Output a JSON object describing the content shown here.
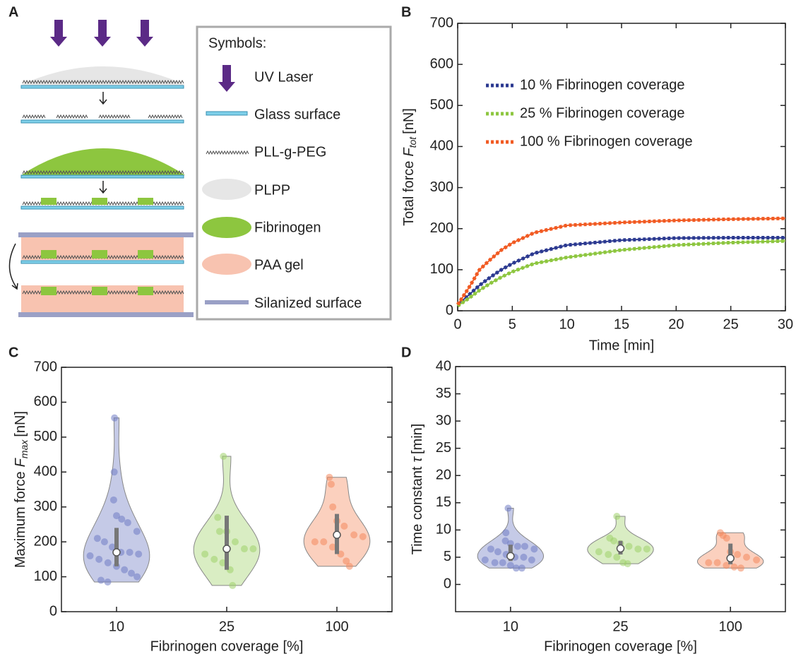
{
  "panel_labels": [
    "A",
    "B",
    "C",
    "D"
  ],
  "schematic": {
    "legend_title": "Symbols:",
    "symbols": [
      "UV Laser",
      "Glass surface",
      "PLL-g-PEG",
      "PLPP",
      "Fibrinogen",
      "PAA gel",
      "Silanized surface"
    ]
  },
  "chart_data": [
    {
      "type": "line",
      "line_style": "dotted",
      "legend": "upper left",
      "x_label": "Time [min]",
      "y_label": {
        "text": "Total force",
        "symbol": "F",
        "subscript": "tot",
        "unit": "[nN]"
      },
      "x": [
        0,
        1,
        2,
        3,
        4,
        5,
        7,
        10,
        15,
        20,
        25,
        30
      ],
      "series": [
        {
          "name": "10 % Fibrinogen coverage",
          "color": "#2b3990",
          "values": [
            15,
            38,
            62,
            82,
            100,
            115,
            140,
            160,
            172,
            177,
            178,
            178
          ]
        },
        {
          "name": "25 % Fibrinogen coverage",
          "color": "#8dc63f",
          "values": [
            12,
            30,
            50,
            67,
            82,
            95,
            115,
            130,
            148,
            160,
            166,
            170
          ]
        },
        {
          "name": "100 % Fibrinogen coverage",
          "color": "#f15a22",
          "values": [
            15,
            55,
            100,
            125,
            148,
            165,
            190,
            208,
            215,
            220,
            223,
            225
          ]
        }
      ],
      "xlim": [
        0,
        30
      ],
      "xticks": [
        0,
        5,
        10,
        15,
        20,
        25,
        30
      ],
      "ylim": [
        0,
        700
      ],
      "yticks": [
        0,
        100,
        200,
        300,
        400,
        500,
        600,
        700
      ]
    },
    {
      "type": "violin",
      "x_label": "Fibrinogen coverage [%]",
      "y_label": {
        "text": "Maximum force",
        "symbol": "F",
        "subscript": "max",
        "unit": "[nN]"
      },
      "categories": [
        "10",
        "25",
        "100"
      ],
      "colors": [
        "#6f7bc4",
        "#9fd26a",
        "#f4895c"
      ],
      "points": [
        [
          555,
          400,
          320,
          275,
          265,
          255,
          230,
          210,
          200,
          185,
          170,
          170,
          165,
          160,
          150,
          140,
          130,
          120,
          110,
          100,
          90,
          85
        ],
        [
          445,
          270,
          230,
          230,
          200,
          180,
          180,
          165,
          150,
          140,
          120,
          75
        ],
        [
          385,
          365,
          300,
          260,
          245,
          220,
          215,
          200,
          200,
          185,
          165,
          145,
          130
        ]
      ],
      "median": [
        170,
        180,
        220
      ],
      "q1": [
        130,
        120,
        165
      ],
      "q3": [
        240,
        275,
        280
      ],
      "ylim": [
        0,
        700
      ],
      "yticks": [
        0,
        100,
        200,
        300,
        400,
        500,
        600,
        700
      ]
    },
    {
      "type": "violin",
      "x_label": "Fibrinogen coverage [%]",
      "y_label": {
        "text": "Time constant",
        "symbol": "τ",
        "unit": "[min]"
      },
      "categories": [
        "10",
        "25",
        "100"
      ],
      "colors": [
        "#6f7bc4",
        "#9fd26a",
        "#f4895c"
      ],
      "points": [
        [
          14,
          9.5,
          8,
          7.5,
          7,
          7,
          6.5,
          6.5,
          6,
          5.5,
          5,
          5,
          4.5,
          4.5,
          4,
          4,
          3.5,
          3,
          3
        ],
        [
          12.5,
          8.5,
          8,
          7.5,
          7,
          6.5,
          6.5,
          6,
          5.5,
          5,
          4,
          3.8
        ],
        [
          9.5,
          9,
          8.5,
          6,
          5.5,
          5,
          4.5,
          4,
          4,
          3.5,
          3.2,
          3
        ]
      ],
      "median": [
        5.2,
        6.6,
        4.8
      ],
      "q1": [
        4.3,
        5.5,
        3.7
      ],
      "q3": [
        7.3,
        8,
        7.5
      ],
      "ylim": [
        -5,
        40
      ],
      "yticks": [
        0,
        5,
        10,
        15,
        20,
        25,
        30,
        35,
        40
      ]
    }
  ]
}
